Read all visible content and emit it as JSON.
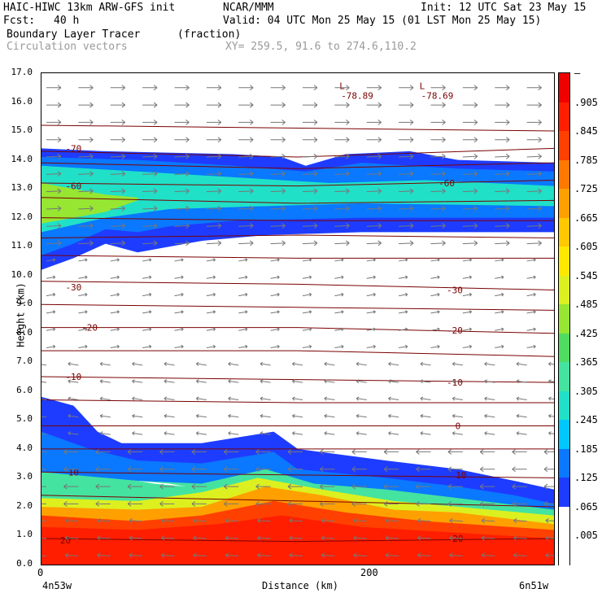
{
  "header": {
    "title_left": "HAIC-HIWC 13km ARW-GFS init",
    "org": "NCAR/MMM",
    "init": "Init: 12 UTC Sat 23 May 15",
    "fcst_label": "Fcst:",
    "fcst_value": "40 h",
    "valid": "Valid: 04 UTC Mon 25 May 15 (01 LST Mon 25 May 15)",
    "field1": "Boundary Layer Tracer",
    "field1_units": "(fraction)",
    "field2": "Circulation vectors",
    "xy": "XY= 259.5, 91.6 to 274.6,110.2"
  },
  "colors": {
    "contour": "#7a0000",
    "vector": "#777777",
    "scale": [
      "#ffffff",
      "#1e3cff",
      "#0a78ff",
      "#00c8ff",
      "#20e0c8",
      "#44e3a0",
      "#50dc60",
      "#96e632",
      "#dcf020",
      "#ffe800",
      "#ffc800",
      "#ffa000",
      "#ff7800",
      "#ff4000",
      "#ff1e00",
      "#f00000"
    ]
  },
  "chart_data": {
    "type": "heatmap",
    "xlabel": "Distance (km)",
    "ylabel": "Height (km)",
    "xlim": [
      0,
      320
    ],
    "ylim": [
      0,
      17
    ],
    "x_ticks": [
      {
        "x": 0,
        "label": "0"
      },
      {
        "x": 200,
        "label": "200"
      }
    ],
    "x_end_labels": {
      "left": "4n53w",
      "right": "6n51w"
    },
    "y_ticks": [
      "0.0",
      "1.0",
      "2.0",
      "3.0",
      "4.0",
      "5.0",
      "6.0",
      "7.0",
      "8.0",
      "9.0",
      "10.0",
      "11.0",
      "12.0",
      "13.0",
      "14.0",
      "15.0",
      "16.0",
      "17.0"
    ],
    "colorbar_labels": [
      "–",
      ".905",
      ".845",
      ".785",
      ".725",
      ".665",
      ".605",
      ".545",
      ".485",
      ".425",
      ".365",
      ".305",
      ".245",
      ".185",
      ".125",
      ".065",
      ".005"
    ],
    "tracer_layers": [
      {
        "level": 0.05,
        "upper": [
          [
            0,
            5.8
          ],
          [
            20,
            5.5
          ],
          [
            35,
            4.6
          ],
          [
            50,
            4.2
          ],
          [
            100,
            4.2
          ],
          [
            145,
            4.6
          ],
          [
            160,
            4.0
          ],
          [
            215,
            3.6
          ],
          [
            260,
            3.3
          ],
          [
            295,
            2.9
          ],
          [
            320,
            2.6
          ]
        ],
        "lower": [
          [
            0,
            0
          ],
          [
            320,
            0
          ]
        ]
      },
      {
        "level": 0.1,
        "upper": [
          [
            0,
            4.6
          ],
          [
            30,
            4.0
          ],
          [
            60,
            3.6
          ],
          [
            100,
            3.5
          ],
          [
            145,
            3.9
          ],
          [
            160,
            3.3
          ],
          [
            215,
            3.0
          ],
          [
            260,
            2.7
          ],
          [
            295,
            2.4
          ],
          [
            320,
            2.1
          ]
        ],
        "lower": [
          [
            0,
            0
          ],
          [
            320,
            0
          ]
        ]
      },
      {
        "level": 0.3,
        "upper": [
          [
            0,
            3.2
          ],
          [
            60,
            2.9
          ],
          [
            100,
            2.8
          ],
          [
            140,
            3.3
          ],
          [
            170,
            2.8
          ],
          [
            215,
            2.6
          ],
          [
            260,
            2.3
          ],
          [
            320,
            1.9
          ]
        ],
        "lower": [
          [
            0,
            0
          ],
          [
            320,
            0
          ]
        ]
      },
      {
        "level": 0.5,
        "upper": [
          [
            0,
            2.3
          ],
          [
            60,
            2.2
          ],
          [
            100,
            2.5
          ],
          [
            135,
            3.0
          ],
          [
            175,
            2.6
          ],
          [
            220,
            2.2
          ],
          [
            260,
            2.0
          ],
          [
            320,
            1.7
          ]
        ],
        "lower": [
          [
            0,
            0
          ],
          [
            320,
            0
          ]
        ]
      },
      {
        "level": 0.7,
        "upper": [
          [
            0,
            2.0
          ],
          [
            60,
            1.9
          ],
          [
            100,
            2.0
          ],
          [
            140,
            2.7
          ],
          [
            175,
            2.4
          ],
          [
            220,
            1.9
          ],
          [
            260,
            1.8
          ],
          [
            320,
            1.4
          ]
        ],
        "lower": [
          [
            0,
            0
          ],
          [
            320,
            0
          ]
        ]
      },
      {
        "level": 0.85,
        "upper": [
          [
            0,
            1.7
          ],
          [
            60,
            1.5
          ],
          [
            100,
            1.7
          ],
          [
            145,
            2.2
          ],
          [
            190,
            1.8
          ],
          [
            240,
            1.5
          ],
          [
            320,
            1.2
          ]
        ],
        "lower": [
          [
            0,
            0
          ],
          [
            320,
            0
          ]
        ]
      },
      {
        "level": 0.95,
        "upper": [
          [
            0,
            1.3
          ],
          [
            60,
            1.2
          ],
          [
            110,
            1.4
          ],
          [
            150,
            1.7
          ],
          [
            200,
            1.3
          ],
          [
            260,
            1.1
          ],
          [
            320,
            0.9
          ]
        ],
        "lower": [
          [
            0,
            0
          ],
          [
            320,
            0
          ]
        ]
      },
      {
        "level": 0.05,
        "upper": [
          [
            0,
            14.4
          ],
          [
            40,
            14.3
          ],
          [
            120,
            14.2
          ],
          [
            150,
            14.1
          ],
          [
            165,
            13.8
          ],
          [
            190,
            14.2
          ],
          [
            230,
            14.3
          ],
          [
            260,
            14.0
          ],
          [
            320,
            13.9
          ]
        ],
        "lower": [
          [
            0,
            10.2
          ],
          [
            20,
            10.6
          ],
          [
            40,
            11.1
          ],
          [
            60,
            10.8
          ],
          [
            80,
            11.0
          ],
          [
            100,
            11.2
          ],
          [
            140,
            11.4
          ],
          [
            200,
            11.5
          ],
          [
            320,
            11.5
          ]
        ]
      },
      {
        "level": 0.1,
        "upper": [
          [
            0,
            14.1
          ],
          [
            60,
            14.0
          ],
          [
            120,
            13.8
          ],
          [
            165,
            13.6
          ],
          [
            200,
            13.9
          ],
          [
            260,
            13.7
          ],
          [
            320,
            13.6
          ]
        ],
        "lower": [
          [
            0,
            10.7
          ],
          [
            20,
            11.1
          ],
          [
            40,
            11.6
          ],
          [
            60,
            11.5
          ],
          [
            80,
            11.7
          ],
          [
            120,
            11.9
          ],
          [
            200,
            12.0
          ],
          [
            320,
            12.0
          ]
        ]
      },
      {
        "level": 0.25,
        "upper": [
          [
            0,
            13.8
          ],
          [
            60,
            13.6
          ],
          [
            120,
            13.4
          ],
          [
            180,
            13.2
          ],
          [
            240,
            13.3
          ],
          [
            320,
            13.1
          ]
        ],
        "lower": [
          [
            0,
            11.5
          ],
          [
            40,
            12.0
          ],
          [
            80,
            12.3
          ],
          [
            140,
            12.4
          ],
          [
            200,
            12.5
          ],
          [
            320,
            12.4
          ]
        ]
      },
      {
        "level": 0.45,
        "upper": [
          [
            0,
            13.2
          ],
          [
            20,
            13.0
          ],
          [
            40,
            12.8
          ],
          [
            60,
            12.7
          ]
        ],
        "lower": [
          [
            0,
            11.8
          ],
          [
            20,
            12.0
          ],
          [
            40,
            12.2
          ],
          [
            60,
            12.6
          ]
        ]
      }
    ],
    "tracer_gaps": [
      {
        "upper": [
          [
            50,
            3.0
          ],
          [
            70,
            2.8
          ],
          [
            90,
            2.7
          ],
          [
            80,
            2.8
          ],
          [
            60,
            2.9
          ]
        ],
        "lower": [
          [
            50,
            2.85
          ],
          [
            70,
            2.7
          ],
          [
            90,
            2.65
          ],
          [
            80,
            2.7
          ],
          [
            60,
            2.75
          ]
        ]
      }
    ],
    "temperature_contours": [
      {
        "label": "-70",
        "points": [
          [
            0,
            14.3
          ],
          [
            160,
            14.1
          ],
          [
            320,
            14.4
          ]
        ],
        "label_at": [
          20,
          14.4
        ]
      },
      {
        "label": "",
        "points": [
          [
            0,
            13.9
          ],
          [
            160,
            13.7
          ],
          [
            320,
            13.9
          ]
        ]
      },
      {
        "label": "-60",
        "points": [
          [
            0,
            13.2
          ],
          [
            160,
            13.1
          ],
          [
            320,
            13.3
          ]
        ],
        "label_at": [
          20,
          13.1
        ]
      },
      {
        "label": "",
        "points": [
          [
            0,
            12.7
          ],
          [
            160,
            12.5
          ],
          [
            320,
            12.6
          ]
        ]
      },
      {
        "label": "",
        "points": [
          [
            0,
            12.0
          ],
          [
            160,
            11.9
          ],
          [
            320,
            11.9
          ]
        ]
      },
      {
        "label": "",
        "points": [
          [
            0,
            11.3
          ],
          [
            160,
            11.4
          ],
          [
            320,
            11.3
          ]
        ]
      },
      {
        "label": "",
        "points": [
          [
            0,
            10.7
          ],
          [
            160,
            10.6
          ],
          [
            320,
            10.6
          ]
        ]
      },
      {
        "label": "-30",
        "points": [
          [
            0,
            9.8
          ],
          [
            160,
            9.7
          ],
          [
            320,
            9.5
          ]
        ],
        "label_at": [
          20,
          9.6
        ]
      },
      {
        "label": "",
        "points": [
          [
            0,
            9.0
          ],
          [
            160,
            8.9
          ],
          [
            320,
            8.8
          ]
        ]
      },
      {
        "label": "-20",
        "points": [
          [
            0,
            8.2
          ],
          [
            160,
            8.2
          ],
          [
            320,
            8.0
          ]
        ],
        "label_at": [
          30,
          8.2
        ]
      },
      {
        "label": "",
        "points": [
          [
            0,
            7.4
          ],
          [
            160,
            7.4
          ],
          [
            320,
            7.2
          ]
        ]
      },
      {
        "label": "-10",
        "points": [
          [
            0,
            6.5
          ],
          [
            160,
            6.4
          ],
          [
            320,
            6.3
          ]
        ],
        "label_at": [
          20,
          6.5
        ]
      },
      {
        "label": "",
        "points": [
          [
            0,
            5.7
          ],
          [
            160,
            5.6
          ],
          [
            320,
            5.6
          ]
        ]
      },
      {
        "label": "0",
        "points": [
          [
            0,
            4.8
          ],
          [
            160,
            4.8
          ],
          [
            320,
            4.8
          ]
        ]
      },
      {
        "label": "",
        "points": [
          [
            0,
            4.0
          ],
          [
            160,
            4.0
          ],
          [
            320,
            4.0
          ]
        ]
      },
      {
        "label": "10",
        "points": [
          [
            0,
            3.2
          ],
          [
            160,
            3.1
          ],
          [
            320,
            3.0
          ]
        ],
        "label_at": [
          20,
          3.2
        ]
      },
      {
        "label": "",
        "points": [
          [
            0,
            2.4
          ],
          [
            160,
            2.2
          ],
          [
            320,
            2.0
          ]
        ]
      },
      {
        "label": "20",
        "points": [
          [
            0,
            0.9
          ],
          [
            160,
            0.8
          ],
          [
            320,
            0.9
          ]
        ]
      },
      {
        "label": "15.0 line",
        "points": [
          [
            0,
            15.2
          ],
          [
            320,
            15.0
          ]
        ]
      }
    ],
    "contour_labels": [
      {
        "text": "-70",
        "x": 20,
        "y": 14.4
      },
      {
        "text": "-60",
        "x": 20,
        "y": 13.1
      },
      {
        "text": "-60",
        "x": 253,
        "y": 13.2
      },
      {
        "text": "-30",
        "x": 20,
        "y": 9.6
      },
      {
        "text": "-30",
        "x": 258,
        "y": 9.5
      },
      {
        "text": "-20",
        "x": 30,
        "y": 8.2
      },
      {
        "text": "-20",
        "x": 258,
        "y": 8.1
      },
      {
        "text": "-10",
        "x": 20,
        "y": 6.5
      },
      {
        "text": "-10",
        "x": 258,
        "y": 6.3
      },
      {
        "text": "0",
        "x": 260,
        "y": 4.8
      },
      {
        "text": "10",
        "x": 20,
        "y": 3.2
      },
      {
        "text": "10",
        "x": 262,
        "y": 3.1
      },
      {
        "text": "20",
        "x": 15,
        "y": 0.85
      },
      {
        "text": "20",
        "x": 260,
        "y": 0.9
      }
    ],
    "minima": [
      {
        "text": "L",
        "value": "-78.89",
        "x": 186,
        "y": 16.45
      },
      {
        "text": "L",
        "value": "-78.69",
        "x": 236,
        "y": 16.45
      }
    ]
  }
}
